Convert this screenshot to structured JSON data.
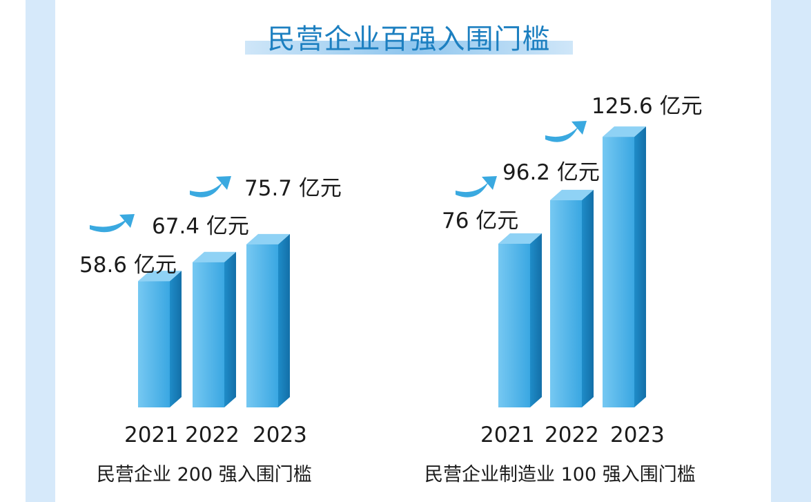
{
  "title": "民营企业百强入围门槛",
  "colors": {
    "bar_front": "#4fb6ea",
    "bar_side": "#1a84bf",
    "bar_top": "#8fd2f5",
    "arrow": "#3aa9e0",
    "strip": "#d6e9fa"
  },
  "chart_data": [
    {
      "type": "bar",
      "title": "民营企业 200 强入围门槛",
      "unit": "亿元",
      "categories": [
        "2021",
        "2022",
        "2023"
      ],
      "values": [
        58.6,
        67.4,
        75.7
      ],
      "labels": [
        "58.6 亿元",
        "67.4 亿元",
        "75.7 亿元"
      ]
    },
    {
      "type": "bar",
      "title": "民营企业制造业 100 强入围门槛",
      "unit": "亿元",
      "categories": [
        "2021",
        "2022",
        "2023"
      ],
      "values": [
        76,
        96.2,
        125.6
      ],
      "labels": [
        "76 亿元",
        "96.2 亿元",
        "125.6 亿元"
      ]
    }
  ]
}
